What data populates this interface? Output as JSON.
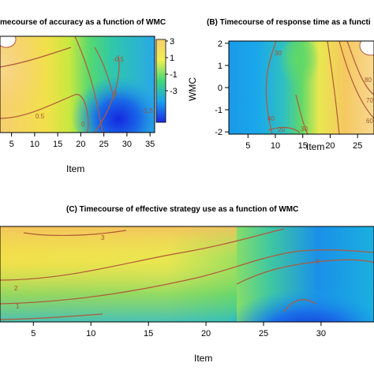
{
  "chart_data": [
    {
      "id": "A",
      "type": "heatmap",
      "title": "mecourse of accuracy as a function of WMC",
      "xlabel": "Item",
      "ylabel": "",
      "xticks": [
        "5",
        "10",
        "15",
        "20",
        "25",
        "30",
        "35"
      ],
      "xlim": [
        2.5,
        36
      ],
      "ylim": [
        -2.1,
        2.1
      ],
      "colorbar": {
        "ticks": [
          "3",
          "1",
          "-1",
          "-3"
        ],
        "range": [
          3,
          -3
        ]
      },
      "contour_labels": [
        "-0.5",
        "-1",
        "-1.5",
        "0.5",
        "0"
      ],
      "colors": [
        "#1a2ae0",
        "#1aa0f0",
        "#40d878",
        "#f0f050",
        "#f5c060",
        "#f8d890"
      ]
    },
    {
      "id": "B",
      "type": "heatmap",
      "title": "(B) Timecourse of response time as a functi",
      "xlabel": "Item",
      "ylabel": "WMC",
      "xticks": [
        "5",
        "10",
        "15",
        "20",
        "25"
      ],
      "yticks": [
        "2",
        "1",
        "0",
        "-1",
        "-2"
      ],
      "xlim": [
        1.5,
        28
      ],
      "ylim": [
        -2.1,
        2.1
      ],
      "contour_labels": [
        "30",
        "40",
        "20",
        "30",
        "80",
        "70",
        "60"
      ]
    },
    {
      "id": "C",
      "type": "heatmap",
      "title": "(C) Timecourse of effective strategy use as a function of WMC",
      "xlabel": "Item",
      "ylabel": "",
      "xticks": [
        "5",
        "10",
        "15",
        "20",
        "25",
        "30"
      ],
      "xlim": [
        2.1,
        34.6
      ],
      "ylim": [
        -2.1,
        2.1
      ],
      "contour_labels": [
        "3",
        "2",
        "1",
        "0"
      ]
    }
  ]
}
